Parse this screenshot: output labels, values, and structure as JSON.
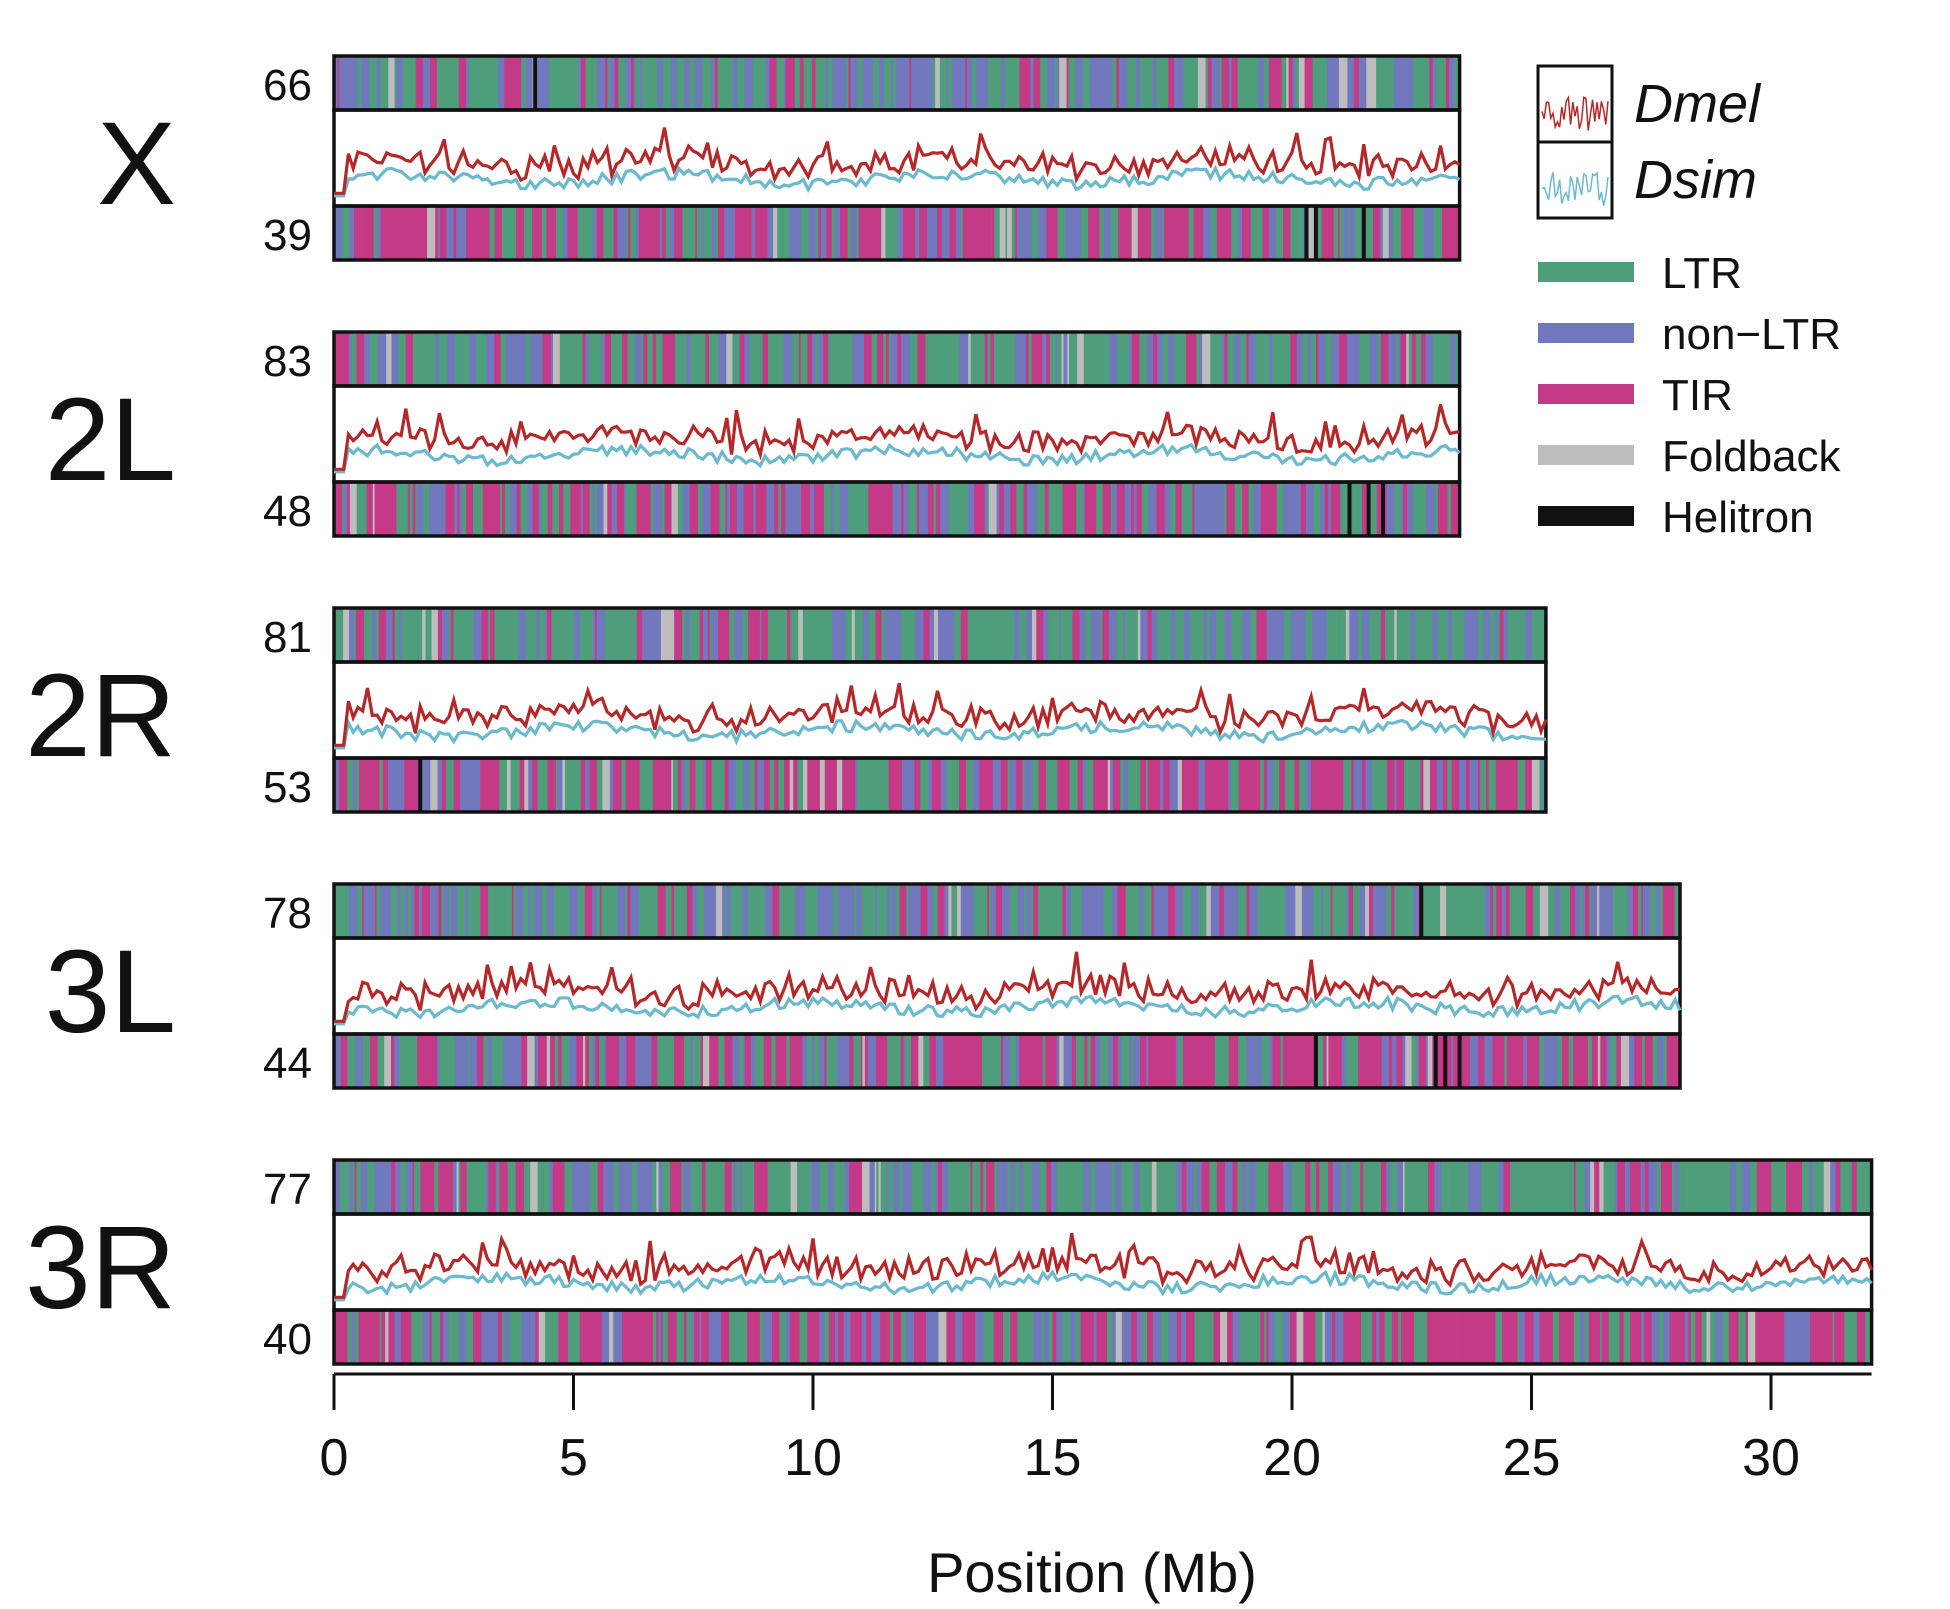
{
  "chart_data": {
    "type": "line",
    "xlabel": "Position (Mb)",
    "x_ticks": [
      "0",
      "5",
      "10",
      "15",
      "20",
      "25",
      "30"
    ],
    "xlim": [
      0,
      32
    ],
    "series": [
      {
        "name": "Dmel",
        "color": "#b5282a"
      },
      {
        "name": "Dsim",
        "color": "#6bb9cc"
      }
    ],
    "te_classes": [
      {
        "name": "LTR",
        "color": "#4e9d7b"
      },
      {
        "name": "non−LTR",
        "color": "#7178be"
      },
      {
        "name": "TIR",
        "color": "#c53a86"
      },
      {
        "name": "Foldback",
        "color": "#bdbdbd"
      },
      {
        "name": "Helitron",
        "color": "#111111"
      }
    ],
    "chromosomes": [
      {
        "name": "X",
        "length_mb": 23.5,
        "top_count": "66",
        "bottom_count": "39",
        "helitron_top": [
          4.2
        ],
        "helitron_bottom": [
          20.3,
          20.5,
          21.5
        ]
      },
      {
        "name": "2L",
        "length_mb": 23.5,
        "top_count": "83",
        "bottom_count": "48",
        "helitron_top": [],
        "helitron_bottom": [
          21.2,
          21.6,
          21.9
        ]
      },
      {
        "name": "2R",
        "length_mb": 25.3,
        "top_count": "81",
        "bottom_count": "53",
        "helitron_top": [],
        "helitron_bottom": [
          1.8
        ]
      },
      {
        "name": "3L",
        "length_mb": 28.1,
        "top_count": "78",
        "bottom_count": "44",
        "helitron_top": [
          22.7
        ],
        "helitron_bottom": [
          20.5,
          23.0,
          23.2,
          23.5
        ]
      },
      {
        "name": "3R",
        "length_mb": 32.1,
        "top_count": "77",
        "bottom_count": "40",
        "helitron_top": [],
        "helitron_bottom": []
      }
    ]
  }
}
